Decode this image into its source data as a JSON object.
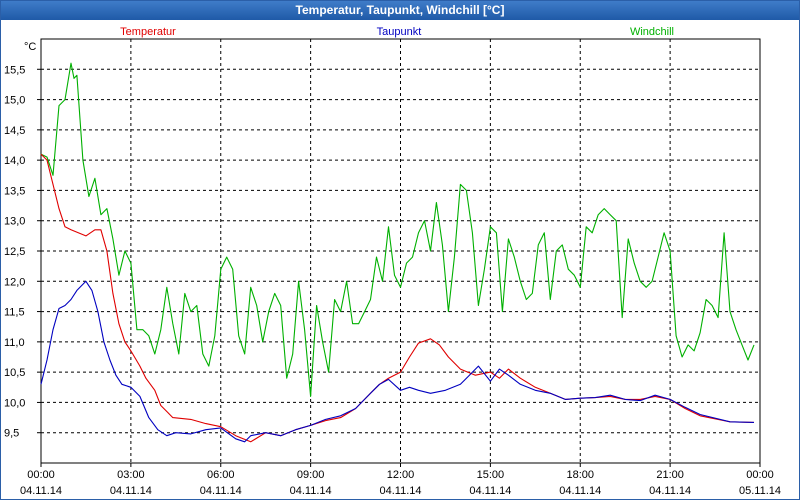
{
  "window": {
    "title": "Temperatur, Taupunkt, Windchill [°C]"
  },
  "colors": {
    "Temperatur": "#e00000",
    "Taupunkt": "#0000c0",
    "Windchill": "#00b000",
    "titlebar": "#2b63b0",
    "grid": "#000000",
    "frame": "#000000"
  },
  "chart_data": {
    "type": "line",
    "title": "Temperatur, Taupunkt, Windchill [°C]",
    "ylabel": "°C",
    "xlabel": "",
    "ylim": [
      9.0,
      16.0
    ],
    "yticks": [
      9.5,
      10.0,
      10.5,
      11.0,
      11.5,
      12.0,
      12.5,
      13.0,
      13.5,
      14.0,
      14.5,
      15.0,
      15.5
    ],
    "ytick_labels": [
      "9,5",
      "10,0",
      "10,5",
      "11,0",
      "11,5",
      "12,0",
      "12,5",
      "13,0",
      "13,5",
      "14,0",
      "14,5",
      "15,0",
      "15,5"
    ],
    "xlim_hours": [
      0,
      24
    ],
    "xtick_hours": [
      0,
      3,
      6,
      9,
      12,
      15,
      18,
      21,
      24
    ],
    "xtick_time_labels": [
      "00:00",
      "03:00",
      "06:00",
      "09:00",
      "12:00",
      "15:00",
      "18:00",
      "21:00",
      "00:00"
    ],
    "xtick_date_labels": [
      "04.11.14",
      "04.11.14",
      "04.11.14",
      "04.11.14",
      "04.11.14",
      "04.11.14",
      "04.11.14",
      "04.11.14",
      "05.11.14"
    ],
    "grid": true,
    "legend": "top",
    "series": [
      {
        "name": "Temperatur",
        "x": [
          0,
          0.2,
          0.4,
          0.6,
          0.8,
          1.0,
          1.5,
          1.8,
          2.0,
          2.2,
          2.4,
          2.6,
          2.8,
          3.0,
          3.3,
          3.5,
          3.8,
          4.0,
          4.2,
          4.4,
          5.0,
          5.5,
          6.0,
          6.5,
          7.0,
          7.5,
          8.0,
          8.5,
          9.0,
          9.5,
          10.0,
          10.5,
          11.0,
          11.3,
          11.6,
          12.0,
          12.3,
          12.6,
          13.0,
          13.3,
          13.6,
          14.0,
          14.5,
          15.0,
          15.3,
          15.6,
          16.0,
          16.5,
          17.0,
          17.5,
          18.0,
          18.5,
          19.0,
          19.5,
          20.0,
          20.5,
          21.0,
          21.5,
          22.0,
          23.0,
          23.8
        ],
        "y": [
          14.1,
          14.0,
          13.6,
          13.2,
          12.9,
          12.85,
          12.75,
          12.85,
          12.85,
          12.5,
          11.8,
          11.3,
          11.0,
          10.85,
          10.6,
          10.4,
          10.2,
          9.95,
          9.85,
          9.75,
          9.72,
          9.65,
          9.6,
          9.45,
          9.35,
          9.5,
          9.45,
          9.55,
          9.62,
          9.7,
          9.75,
          9.9,
          10.15,
          10.3,
          10.4,
          10.5,
          10.75,
          10.98,
          11.05,
          10.95,
          10.75,
          10.55,
          10.45,
          10.5,
          10.4,
          10.55,
          10.4,
          10.25,
          10.15,
          10.05,
          10.07,
          10.08,
          10.1,
          10.05,
          10.05,
          10.1,
          10.05,
          9.9,
          9.78,
          9.68,
          9.67
        ]
      },
      {
        "name": "Taupunkt",
        "x": [
          0,
          0.2,
          0.4,
          0.6,
          0.8,
          1.0,
          1.2,
          1.5,
          1.7,
          1.9,
          2.1,
          2.3,
          2.5,
          2.7,
          3.0,
          3.3,
          3.6,
          3.9,
          4.2,
          4.5,
          5.0,
          5.5,
          6.0,
          6.5,
          6.8,
          7.0,
          7.5,
          8.0,
          8.5,
          9.0,
          9.5,
          10.0,
          10.5,
          11.0,
          11.3,
          11.6,
          12.0,
          12.3,
          12.6,
          13.0,
          13.5,
          14.0,
          14.3,
          14.6,
          15.0,
          15.3,
          15.6,
          16.0,
          16.5,
          17.0,
          17.5,
          18.0,
          18.5,
          19.0,
          19.5,
          20.0,
          20.5,
          21.0,
          21.5,
          22.0,
          23.0,
          23.8
        ],
        "y": [
          10.3,
          10.7,
          11.2,
          11.55,
          11.6,
          11.7,
          11.85,
          12.0,
          11.85,
          11.5,
          11.0,
          10.7,
          10.45,
          10.3,
          10.25,
          10.1,
          9.75,
          9.55,
          9.45,
          9.5,
          9.48,
          9.55,
          9.58,
          9.4,
          9.35,
          9.45,
          9.5,
          9.45,
          9.55,
          9.62,
          9.72,
          9.78,
          9.9,
          10.15,
          10.3,
          10.38,
          10.2,
          10.25,
          10.2,
          10.15,
          10.2,
          10.3,
          10.45,
          10.6,
          10.35,
          10.55,
          10.45,
          10.3,
          10.2,
          10.15,
          10.05,
          10.07,
          10.08,
          10.12,
          10.05,
          10.03,
          10.12,
          10.05,
          9.92,
          9.8,
          9.68,
          9.67
        ]
      },
      {
        "name": "Windchill",
        "x": [
          0,
          0.2,
          0.4,
          0.6,
          0.8,
          1.0,
          1.1,
          1.2,
          1.4,
          1.6,
          1.8,
          2.0,
          2.2,
          2.4,
          2.6,
          2.8,
          3.0,
          3.2,
          3.4,
          3.6,
          3.8,
          4.0,
          4.2,
          4.4,
          4.6,
          4.8,
          5.0,
          5.2,
          5.4,
          5.6,
          5.8,
          6.0,
          6.2,
          6.4,
          6.6,
          6.8,
          7.0,
          7.2,
          7.4,
          7.6,
          7.8,
          8.0,
          8.2,
          8.4,
          8.6,
          8.8,
          9.0,
          9.2,
          9.4,
          9.6,
          9.8,
          10.0,
          10.2,
          10.4,
          10.6,
          10.8,
          11.0,
          11.2,
          11.4,
          11.6,
          11.8,
          12.0,
          12.2,
          12.4,
          12.6,
          12.8,
          13.0,
          13.2,
          13.4,
          13.6,
          13.8,
          14.0,
          14.2,
          14.4,
          14.6,
          14.8,
          15.0,
          15.2,
          15.4,
          15.6,
          15.8,
          16.0,
          16.2,
          16.4,
          16.6,
          16.8,
          17.0,
          17.2,
          17.4,
          17.6,
          17.8,
          18.0,
          18.2,
          18.4,
          18.6,
          18.8,
          19.0,
          19.2,
          19.4,
          19.6,
          19.8,
          20.0,
          20.2,
          20.4,
          20.6,
          20.8,
          21.0,
          21.2,
          21.4,
          21.6,
          21.8,
          22.0,
          22.2,
          22.4,
          22.6,
          22.8,
          23.0,
          23.2,
          23.4,
          23.6,
          23.8
        ],
        "y": [
          14.1,
          14.05,
          13.75,
          14.9,
          15.0,
          15.6,
          15.35,
          15.4,
          14.0,
          13.4,
          13.7,
          13.1,
          13.2,
          12.7,
          12.1,
          12.5,
          12.3,
          11.2,
          11.2,
          11.1,
          10.8,
          11.2,
          11.9,
          11.3,
          10.8,
          11.8,
          11.5,
          11.6,
          10.8,
          10.6,
          11.1,
          12.2,
          12.4,
          12.2,
          11.1,
          10.8,
          11.9,
          11.6,
          11.0,
          11.5,
          11.8,
          11.6,
          10.4,
          10.8,
          12.0,
          11.2,
          10.1,
          11.6,
          11.0,
          10.5,
          11.7,
          11.5,
          12.0,
          11.3,
          11.3,
          11.5,
          11.7,
          12.4,
          12.0,
          12.9,
          12.1,
          11.9,
          12.3,
          12.4,
          12.8,
          13.0,
          12.5,
          13.3,
          12.6,
          11.5,
          12.4,
          13.6,
          13.5,
          12.8,
          11.6,
          12.2,
          12.9,
          12.8,
          11.5,
          12.7,
          12.4,
          12.0,
          11.7,
          11.8,
          12.6,
          12.8,
          11.7,
          12.5,
          12.6,
          12.2,
          12.1,
          11.9,
          12.9,
          12.8,
          13.1,
          13.2,
          13.1,
          13.0,
          11.4,
          12.7,
          12.3,
          12.0,
          11.9,
          12.0,
          12.4,
          12.8,
          12.5,
          11.1,
          10.75,
          10.95,
          10.85,
          11.15,
          11.7,
          11.6,
          11.4,
          12.8,
          11.5,
          11.2,
          10.95,
          10.7,
          10.95
        ]
      }
    ]
  }
}
